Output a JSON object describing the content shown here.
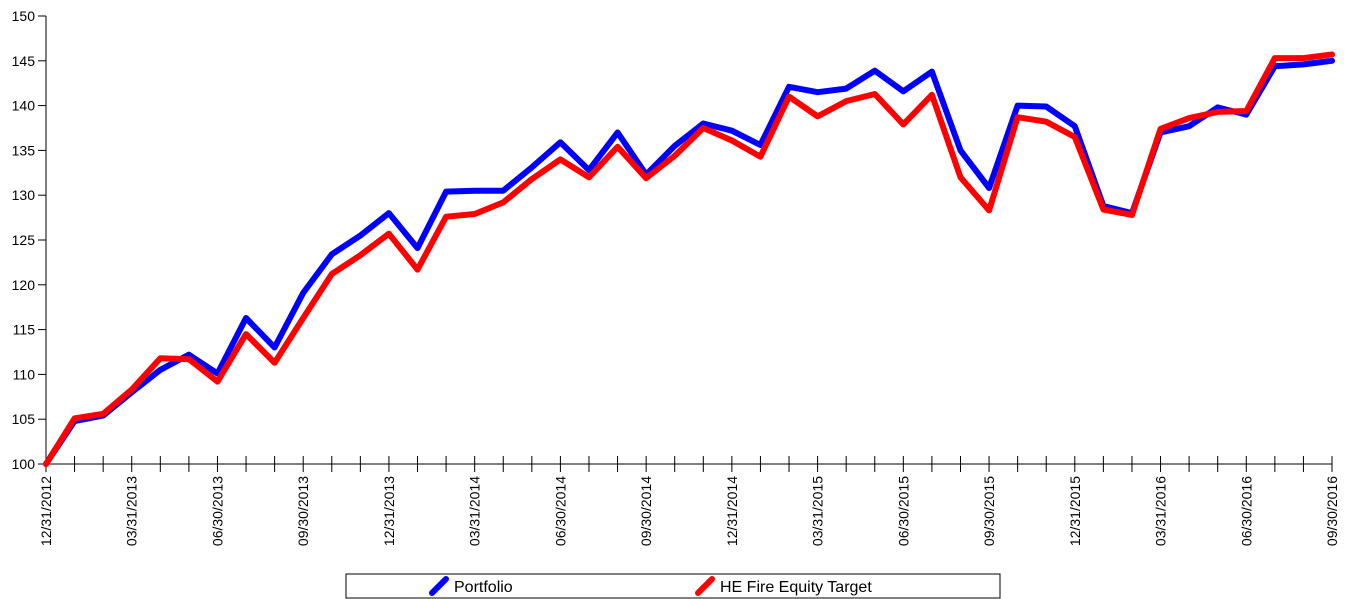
{
  "chart_data": {
    "type": "line",
    "title": "",
    "xlabel": "",
    "ylabel": "",
    "ylim": [
      100,
      150
    ],
    "yticks": [
      100,
      105,
      110,
      115,
      120,
      125,
      130,
      135,
      140,
      145,
      150
    ],
    "x_tick_labels": [
      "12/31/2012",
      "03/31/2013",
      "06/30/2013",
      "09/30/2013",
      "12/31/2013",
      "03/31/2014",
      "06/30/2014",
      "09/30/2014",
      "12/31/2014",
      "03/31/2015",
      "06/30/2015",
      "09/30/2015",
      "12/31/2015",
      "03/31/2016",
      "06/30/2016",
      "09/30/2016"
    ],
    "x": [
      "12/31/2012",
      "01/31/2013",
      "02/28/2013",
      "03/31/2013",
      "04/30/2013",
      "05/31/2013",
      "06/30/2013",
      "07/31/2013",
      "08/31/2013",
      "09/30/2013",
      "10/31/2013",
      "11/30/2013",
      "12/31/2013",
      "01/31/2014",
      "02/28/2014",
      "03/31/2014",
      "04/30/2014",
      "05/31/2014",
      "06/30/2014",
      "07/31/2014",
      "08/31/2014",
      "09/30/2014",
      "10/31/2014",
      "11/30/2014",
      "12/31/2014",
      "01/31/2015",
      "02/28/2015",
      "03/31/2015",
      "04/30/2015",
      "05/31/2015",
      "06/30/2015",
      "07/31/2015",
      "08/31/2015",
      "09/30/2015",
      "10/31/2015",
      "11/30/2015",
      "12/31/2015",
      "01/31/2016",
      "02/29/2016",
      "03/31/2016",
      "04/30/2016",
      "05/31/2016",
      "06/30/2016",
      "07/31/2016",
      "08/31/2016",
      "09/30/2016"
    ],
    "series": [
      {
        "name": "Portfolio",
        "color": "#0000ff",
        "values": [
          100,
          104.8,
          105.4,
          108.0,
          110.5,
          112.2,
          110.1,
          116.3,
          113.0,
          119.1,
          123.4,
          125.5,
          128.0,
          124.1,
          130.4,
          130.5,
          130.5,
          133.1,
          135.9,
          132.8,
          137.0,
          132.3,
          135.5,
          138.0,
          137.2,
          135.6,
          142.1,
          141.5,
          141.9,
          143.9,
          141.6,
          143.8,
          135.0,
          130.8,
          140.0,
          139.9,
          137.7,
          128.8,
          128.0,
          137.0,
          137.7,
          139.8,
          139.0,
          144.4,
          144.6,
          145.0
        ]
      },
      {
        "name": "HE Fire Equity Target",
        "color": "#ff0000",
        "values": [
          100,
          105.1,
          105.6,
          108.3,
          111.8,
          111.7,
          109.2,
          114.5,
          111.3,
          116.3,
          121.2,
          123.3,
          125.7,
          121.7,
          127.6,
          127.9,
          129.2,
          131.8,
          134.0,
          132.0,
          135.4,
          131.9,
          134.4,
          137.5,
          136.1,
          134.3,
          141.0,
          138.8,
          140.5,
          141.3,
          137.9,
          141.2,
          132.0,
          128.3,
          138.7,
          138.2,
          136.5,
          128.4,
          127.8,
          137.4,
          138.6,
          139.3,
          139.4,
          145.3,
          145.3,
          145.7
        ]
      }
    ],
    "legend_position": "bottom-center",
    "grid": false
  }
}
